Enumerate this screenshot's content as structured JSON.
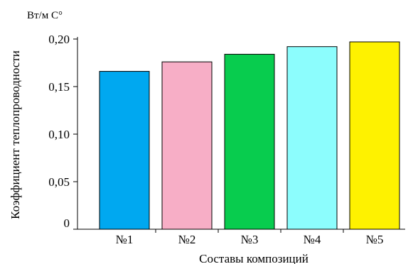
{
  "chart_data": {
    "type": "bar",
    "title": "",
    "unit_label": "Вт/м С°",
    "xlabel": "Составы композиций",
    "ylabel": "Коэффициент теплопроводности",
    "categories": [
      "№1",
      "№2",
      "№3",
      "№4",
      "№5"
    ],
    "values": [
      0.166,
      0.176,
      0.184,
      0.192,
      0.197
    ],
    "colors": [
      "#00a8f0",
      "#f7aec6",
      "#08cc4e",
      "#8cfdfd",
      "#fef200"
    ],
    "ylim": [
      0,
      0.2
    ],
    "yticks": [
      0,
      0.05,
      0.1,
      0.15,
      0.2
    ],
    "ytick_labels": [
      "0",
      "0,05",
      "0,10",
      "0,15",
      "0,20"
    ],
    "grid": false,
    "legend": "none"
  }
}
